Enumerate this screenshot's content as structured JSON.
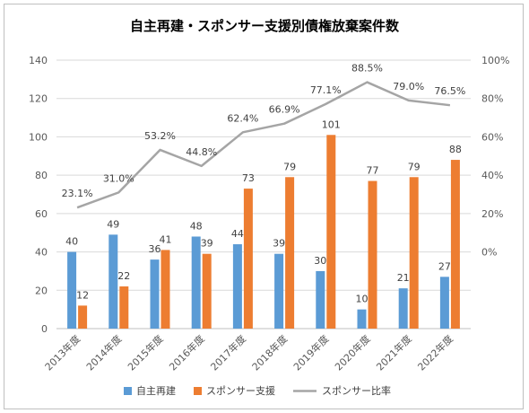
{
  "chart_data": {
    "type": "bar",
    "title": "自主再建・スポンサー支援別債権放棄案件数",
    "categories": [
      "2013年度",
      "2014年度",
      "2015年度",
      "2016年度",
      "2017年度",
      "2018年度",
      "2019年度",
      "2020年度",
      "2021年度",
      "2022年度"
    ],
    "series": [
      {
        "name": "自主再建",
        "type": "bar",
        "axis": "left",
        "color": "#5b9bd5",
        "values": [
          40,
          49,
          36,
          48,
          44,
          39,
          30,
          10,
          21,
          27
        ],
        "labels": [
          "40",
          "49",
          "36",
          "48",
          "44",
          "39",
          "30",
          "10",
          "21",
          "27"
        ]
      },
      {
        "name": "スポンサー支援",
        "type": "bar",
        "axis": "left",
        "color": "#ed7d31",
        "values": [
          12,
          22,
          41,
          39,
          73,
          79,
          101,
          77,
          79,
          88
        ],
        "labels": [
          "12",
          "22",
          "41",
          "39",
          "73",
          "79",
          "101",
          "77",
          "79",
          "88"
        ]
      },
      {
        "name": "スポンサー比率",
        "type": "line",
        "axis": "right",
        "color": "#a5a5a5",
        "values": [
          23.1,
          31.0,
          53.2,
          44.8,
          62.4,
          66.9,
          77.1,
          88.5,
          79.0,
          76.5
        ],
        "labels": [
          "23.1%",
          "31.0%",
          "53.2%",
          "44.8%",
          "62.4%",
          "66.9%",
          "77.1%",
          "88.5%",
          "79.0%",
          "76.5%"
        ]
      }
    ],
    "y_left": {
      "min": 0,
      "max": 140,
      "ticks": [
        "0",
        "20",
        "40",
        "60",
        "80",
        "100",
        "120",
        "140"
      ]
    },
    "y_right": {
      "min": -40,
      "max": 100,
      "ticks": [
        "0%",
        "20%",
        "40%",
        "60%",
        "80%",
        "100%"
      ]
    },
    "grid": true,
    "legend_position": "bottom"
  }
}
